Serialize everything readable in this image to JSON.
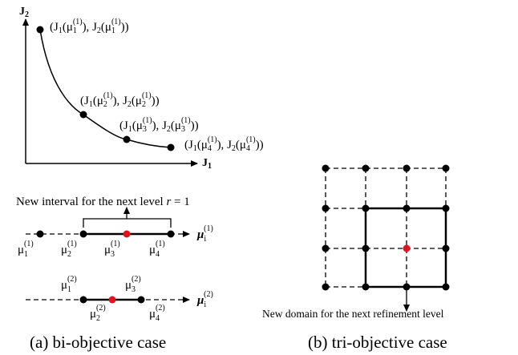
{
  "plot": {
    "y_axis_label": "J",
    "y_axis_sub": "2",
    "x_axis_label": "J",
    "x_axis_sub": "1",
    "points": [
      {
        "idx": "1",
        "sup": "(1)",
        "j1": "J",
        "j1sub": "1",
        "j2": "J",
        "j2sub": "2",
        "mu": "μ",
        "open": "(",
        "close": ")",
        "comma": ", "
      },
      {
        "idx": "2",
        "sup": "(1)"
      },
      {
        "idx": "3",
        "sup": "(1)"
      },
      {
        "idx": "4",
        "sup": "(1)"
      }
    ]
  },
  "bi": {
    "interval_label": "New interval for the next level ",
    "r_label": "r",
    "r_value": " = 1",
    "line1": {
      "axis_symbol": "μ",
      "axis_sub": "i",
      "axis_sup": "(1)",
      "points": [
        "1",
        "2",
        "3",
        "4"
      ],
      "sup": "(1)"
    },
    "line2": {
      "axis_symbol": "μ",
      "axis_sub": "i",
      "axis_sup": "(2)",
      "points": [
        "1",
        "2",
        "3",
        "4"
      ],
      "sup": "(2)"
    },
    "caption": "(a) bi-objective case"
  },
  "tri": {
    "domain_label": "New domain for the next refinement level",
    "caption": "(b) tri-objective case"
  },
  "colors": {
    "ink": "#000000",
    "highlight": "#e0141e"
  }
}
